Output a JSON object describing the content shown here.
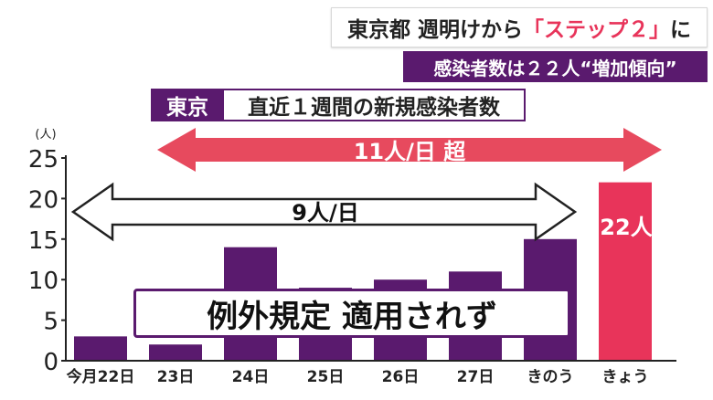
{
  "header": {
    "line1_prefix": "東京都 週明けから",
    "line1_highlight": "「ステップ２」",
    "line1_suffix": "に",
    "line2": "感染者数は２２人“増加傾向”"
  },
  "title": {
    "tag": "東京",
    "main": "直近１週間の新規感染者数"
  },
  "annotations": {
    "upper_arrow_label": "11人/日 超",
    "lower_arrow_label": "9人/日",
    "bar_label_today": "22人",
    "note": "例外規定 適用されず"
  },
  "colors": {
    "purple": "#5a1a6e",
    "highlight_red": "#e8345a",
    "arrow_red": "#e74a5e",
    "arrow_line": "#222222"
  },
  "chart_data": {
    "type": "bar",
    "ylabel": "(人)",
    "ylim": [
      0,
      25
    ],
    "yticks": [
      0,
      5,
      10,
      15,
      20,
      25
    ],
    "categories": [
      "今月22日",
      "23日",
      "24日",
      "25日",
      "26日",
      "27日",
      "きのう",
      "きょう"
    ],
    "values": [
      3,
      2,
      14,
      9,
      10,
      11,
      15,
      22
    ],
    "bar_colors": [
      "#5a1a6e",
      "#5a1a6e",
      "#5a1a6e",
      "#5a1a6e",
      "#5a1a6e",
      "#5a1a6e",
      "#5a1a6e",
      "#e8345a"
    ],
    "legend": "none",
    "grid": false
  }
}
